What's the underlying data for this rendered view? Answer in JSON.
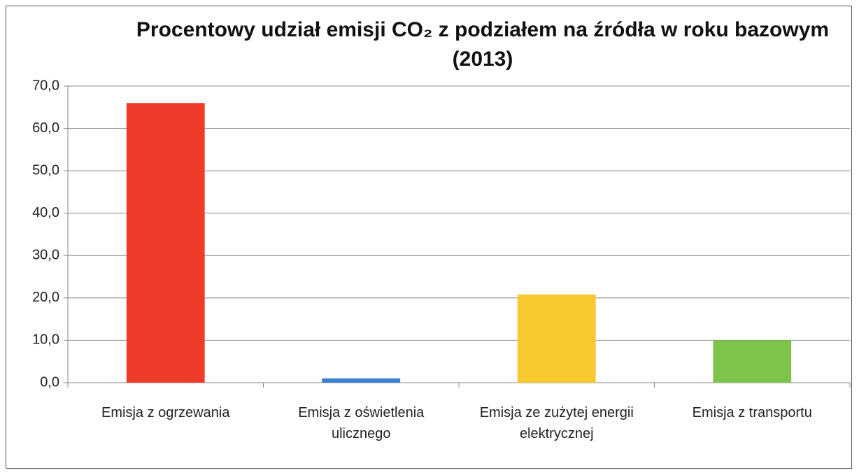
{
  "chart_data": {
    "type": "bar",
    "title": "Procentowy udział emisji CO₂ z podziałem na źródła w roku bazowym (2013)",
    "categories": [
      "Emisja z ogrzewania",
      "Emisja z oświetlenia ulicznego",
      "Emisja ze zużytej energii elektrycznej",
      "Emisja z transportu"
    ],
    "values": [
      66.0,
      1.0,
      20.8,
      10.0
    ],
    "colors": [
      "#f03a2a",
      "#3a7fd0",
      "#f8c830",
      "#7cc44a"
    ],
    "ylim": [
      0,
      70
    ],
    "yticks": [
      {
        "value": 0,
        "label": "0,0"
      },
      {
        "value": 10,
        "label": "10,0"
      },
      {
        "value": 20,
        "label": "20,0"
      },
      {
        "value": 30,
        "label": "30,0"
      },
      {
        "value": 40,
        "label": "40,0"
      },
      {
        "value": 50,
        "label": "50,0"
      },
      {
        "value": 60,
        "label": "60,0"
      },
      {
        "value": 70,
        "label": "70,0"
      }
    ],
    "grid": true
  }
}
